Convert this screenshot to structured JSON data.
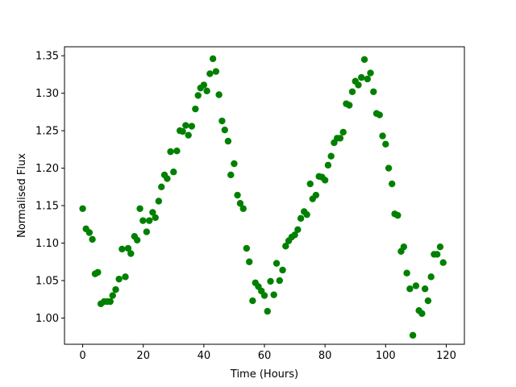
{
  "chart_data": {
    "type": "scatter",
    "title": "",
    "xlabel": "Time (Hours)",
    "ylabel": "Normalised Flux",
    "xlim": [
      -6,
      126
    ],
    "ylim": [
      0.965,
      1.362
    ],
    "xticks": [
      0,
      20,
      40,
      60,
      80,
      100,
      120
    ],
    "yticks": [
      1.0,
      1.05,
      1.1,
      1.15,
      1.2,
      1.25,
      1.3,
      1.35
    ],
    "xtick_labels": [
      "0",
      "20",
      "40",
      "60",
      "80",
      "100",
      "120"
    ],
    "ytick_labels": [
      "1.00",
      "1.05",
      "1.10",
      "1.15",
      "1.20",
      "1.25",
      "1.30",
      "1.35"
    ],
    "grid": false,
    "marker_color": "#008000",
    "series": [
      {
        "x": [
          0.0,
          1.1,
          2.2,
          3.2,
          4.1,
          5.0,
          6.0,
          7.1,
          8.1,
          9.1,
          9.9,
          10.9,
          12.0,
          13.0,
          14.1,
          15.0,
          15.9,
          17.1,
          18.0,
          18.9,
          19.9,
          21.1,
          22.0,
          23.1,
          24.0,
          25.1,
          26.0,
          27.0,
          27.9,
          29.0,
          30.0,
          31.1,
          32.1,
          33.0,
          34.0,
          34.9,
          36.0,
          37.2,
          38.1,
          38.9,
          40.0,
          41.0,
          42.0,
          43.0,
          44.0,
          45.0,
          46.0,
          46.9,
          48.0,
          48.9,
          50.0,
          51.1,
          52.0,
          53.0,
          54.1,
          55.0,
          56.1,
          57.0,
          58.0,
          59.0,
          60.0,
          61.0,
          62.0,
          63.1,
          64.0,
          65.0,
          66.0,
          67.0,
          68.0,
          69.0,
          70.0,
          71.0,
          72.0,
          73.1,
          74.0,
          75.1,
          75.9,
          77.0,
          78.0,
          79.0,
          80.0,
          81.0,
          82.0,
          83.0,
          84.0,
          85.0,
          86.0,
          87.0,
          88.0,
          89.0,
          90.0,
          91.0,
          92.0,
          93.0,
          94.0,
          95.0,
          96.0,
          97.0,
          98.0,
          99.0,
          100.0,
          101.0,
          102.1,
          103.0,
          104.0,
          105.1,
          106.0,
          107.0,
          108.0,
          109.0,
          110.0,
          111.0,
          112.0,
          113.0,
          114.0,
          115.0,
          116.0,
          117.0,
          118.0,
          119.0
        ],
        "y": [
          1.146,
          1.119,
          1.114,
          1.105,
          1.059,
          1.061,
          1.019,
          1.022,
          1.022,
          1.022,
          1.03,
          1.038,
          1.052,
          1.092,
          1.055,
          1.093,
          1.086,
          1.109,
          1.104,
          1.146,
          1.13,
          1.115,
          1.13,
          1.141,
          1.134,
          1.156,
          1.175,
          1.191,
          1.186,
          1.222,
          1.195,
          1.223,
          1.25,
          1.249,
          1.257,
          1.244,
          1.256,
          1.279,
          1.297,
          1.307,
          1.311,
          1.303,
          1.326,
          1.346,
          1.329,
          1.298,
          1.263,
          1.251,
          1.236,
          1.191,
          1.206,
          1.164,
          1.153,
          1.146,
          1.093,
          1.075,
          1.023,
          1.047,
          1.042,
          1.036,
          1.03,
          1.009,
          1.049,
          1.031,
          1.073,
          1.05,
          1.064,
          1.096,
          1.103,
          1.108,
          1.111,
          1.118,
          1.133,
          1.142,
          1.138,
          1.179,
          1.159,
          1.164,
          1.189,
          1.188,
          1.184,
          1.204,
          1.216,
          1.234,
          1.24,
          1.24,
          1.248,
          1.286,
          1.284,
          1.302,
          1.316,
          1.311,
          1.321,
          1.345,
          1.319,
          1.327,
          1.302,
          1.273,
          1.271,
          1.243,
          1.232,
          1.2,
          1.179,
          1.139,
          1.137,
          1.089,
          1.095,
          1.06,
          1.039,
          0.977,
          1.043,
          1.01,
          1.006,
          1.039,
          1.023,
          1.055,
          1.085,
          1.085,
          1.095,
          1.074
        ]
      }
    ]
  }
}
